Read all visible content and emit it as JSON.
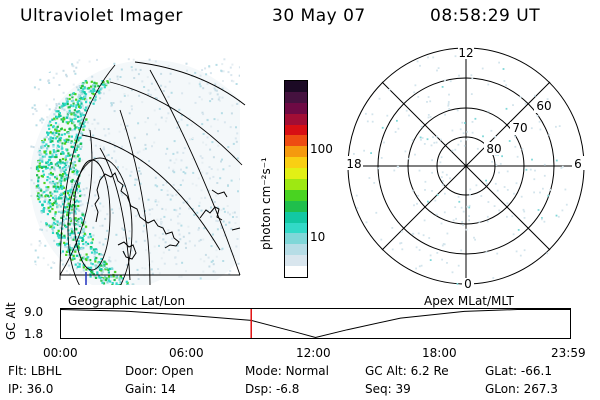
{
  "header": {
    "title": "Ultraviolet Imager",
    "date": "30 May 07",
    "time": "08:58:29 UT"
  },
  "colorbar": {
    "unit_label": "photon cm⁻²s⁻¹",
    "ticks": [
      "100",
      "10"
    ],
    "colors": [
      "#ffffff",
      "#d9e6ee",
      "#b6dde6",
      "#7fd7d8",
      "#32d9c7",
      "#12c8a3",
      "#1fbf4c",
      "#49d321",
      "#9ee812",
      "#e2f015",
      "#f9cf13",
      "#f59a0e",
      "#ee4c12",
      "#d80f14",
      "#a20e35",
      "#6e0a44",
      "#45123f",
      "#1c0a25"
    ]
  },
  "left_panel": {
    "name": "Geographic Lat/Lon"
  },
  "right_panel": {
    "name": "Apex MLat/MLT",
    "mlt_labels": {
      "top": "12",
      "left": "18",
      "right": "6",
      "bottom": "0"
    },
    "mlat_labels": [
      "60",
      "70",
      "80"
    ]
  },
  "timeline": {
    "ylabel": "GC Alt",
    "yticks": [
      "9.0",
      "1.8"
    ],
    "xticks": [
      "00:00",
      "06:00",
      "12:00",
      "18:00",
      "23:59"
    ],
    "xrange_hours": [
      0,
      24
    ],
    "yrange": [
      1.8,
      9.0
    ],
    "current_time_hours": 8.975,
    "altitude_curve": [
      [
        0,
        9.0
      ],
      [
        3,
        8.6
      ],
      [
        6,
        7.5
      ],
      [
        8.975,
        6.2
      ],
      [
        11,
        3.3
      ],
      [
        12,
        1.8
      ],
      [
        13.5,
        3.8
      ],
      [
        16,
        6.8
      ],
      [
        19,
        8.5
      ],
      [
        21.5,
        9.0
      ],
      [
        23.98,
        9.0
      ]
    ]
  },
  "info_rows": [
    [
      {
        "label": "Flt:",
        "value": "LBHL"
      },
      {
        "label": "Door:",
        "value": "Open"
      },
      {
        "label": "Mode:",
        "value": "Normal"
      },
      {
        "label": "GC Alt:",
        "value": "6.2 Re"
      },
      {
        "label": "GLat:",
        "value": "-66.1"
      }
    ],
    [
      {
        "label": "IP:",
        "value": "36.0"
      },
      {
        "label": "Gain:",
        "value": "14"
      },
      {
        "label": "Dsp:",
        "value": "-6.8"
      },
      {
        "label": "Seq:",
        "value": "39"
      },
      {
        "label": "GLon:",
        "value": "267.3"
      }
    ]
  ]
}
